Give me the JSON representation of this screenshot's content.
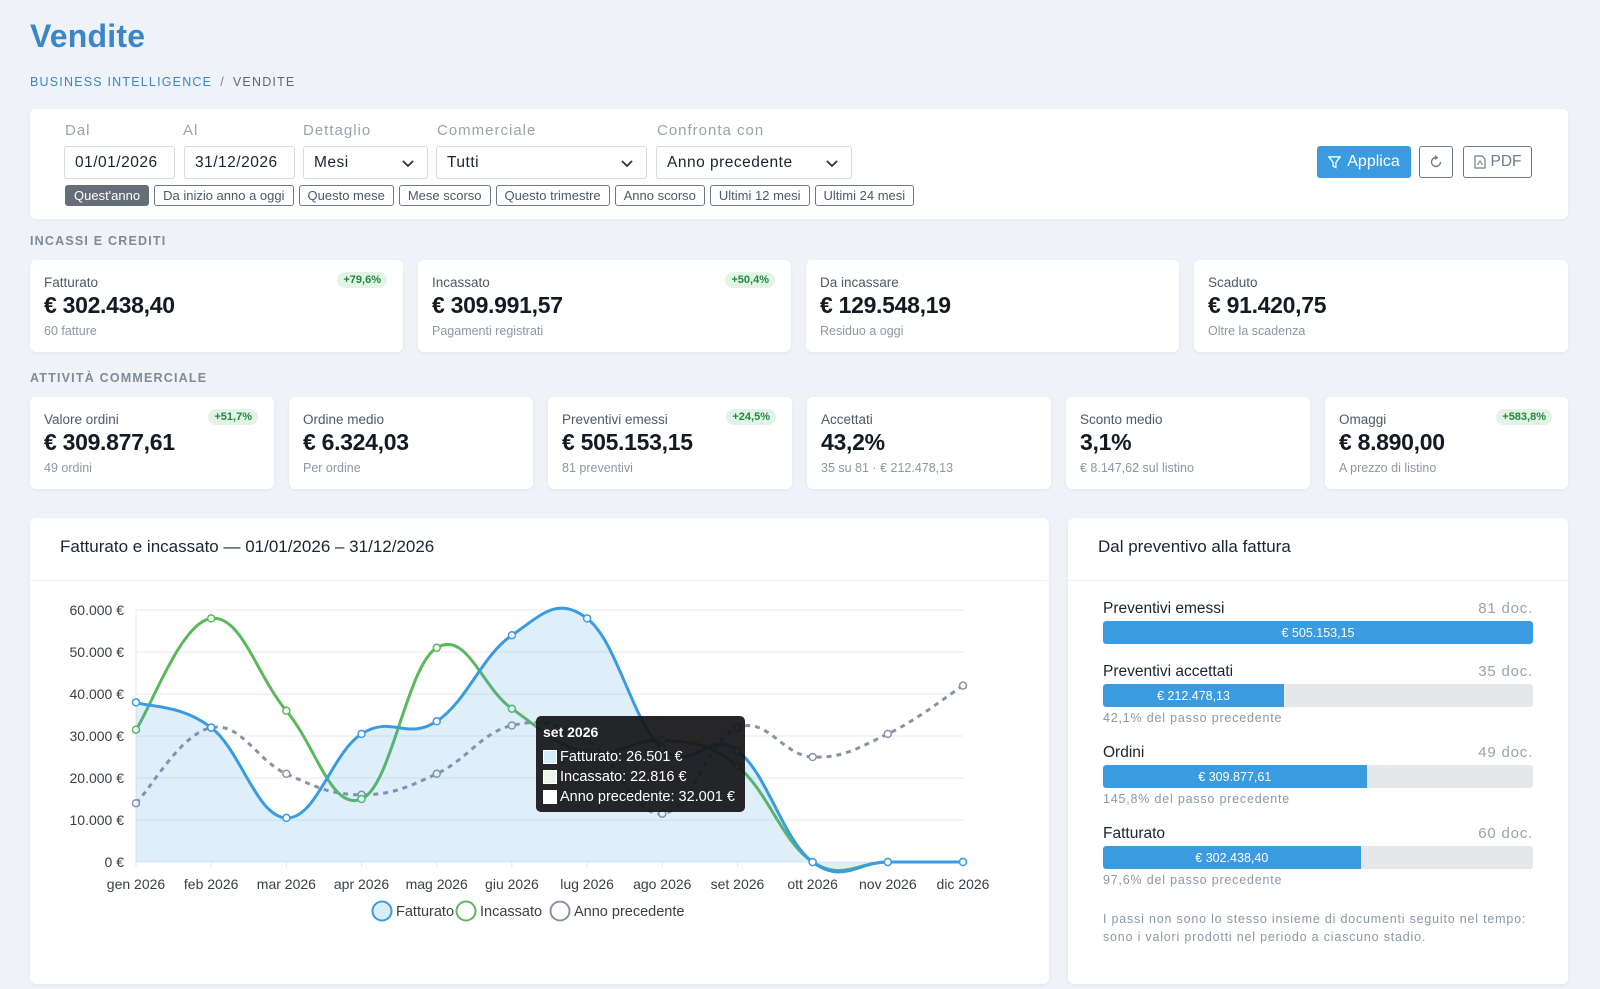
{
  "header": {
    "title": "Vendite",
    "breadcrumb": {
      "link": "BUSINESS INTELLIGENCE",
      "separator": "/",
      "current": "VENDITE"
    }
  },
  "filters": {
    "from": {
      "label": "Dal",
      "value": "01/01/2026"
    },
    "to": {
      "label": "Al",
      "value": "31/12/2026"
    },
    "detail": {
      "label": "Dettaglio",
      "value": "Mesi"
    },
    "salesperson": {
      "label": "Commerciale",
      "value": "Tutti"
    },
    "compare": {
      "label": "Confronta con",
      "value": "Anno precedente"
    },
    "presets": [
      "Quest'anno",
      "Da inizio anno a oggi",
      "Questo mese",
      "Mese scorso",
      "Questo trimestre",
      "Anno scorso",
      "Ultimi 12 mesi",
      "Ultimi 24 mesi"
    ],
    "active_preset": "Quest'anno",
    "apply_label": "Applica",
    "pdf_label": "PDF"
  },
  "sections": {
    "incassi": "INCASSI E CREDITI",
    "attivita": "ATTIVITÀ COMMERCIALE"
  },
  "kpis_row1": [
    {
      "label": "Fatturato",
      "value": "€ 302.438,40",
      "sub": "60 fatture",
      "badge": "+79,6%"
    },
    {
      "label": "Incassato",
      "value": "€ 309.991,57",
      "sub": "Pagamenti registrati",
      "badge": "+50,4%"
    },
    {
      "label": "Da incassare",
      "value": "€ 129.548,19",
      "sub": "Residuo a oggi",
      "badge": ""
    },
    {
      "label": "Scaduto",
      "value": "€ 91.420,75",
      "sub": "Oltre la scadenza",
      "badge": ""
    }
  ],
  "kpis_row2": [
    {
      "label": "Valore ordini",
      "value": "€ 309.877,61",
      "sub": "49 ordini",
      "badge": "+51,7%"
    },
    {
      "label": "Ordine medio",
      "value": "€ 6.324,03",
      "sub": "Per ordine",
      "badge": ""
    },
    {
      "label": "Preventivi emessi",
      "value": "€ 505.153,15",
      "sub": "81 preventivi",
      "badge": "+24,5%"
    },
    {
      "label": "Accettati",
      "value": "43,2%",
      "sub": "35 su 81 · € 212.478,13",
      "badge": ""
    },
    {
      "label": "Sconto medio",
      "value": "3,1%",
      "sub": "€ 8.147,62 sul listino",
      "badge": ""
    },
    {
      "label": "Omaggi",
      "value": "€ 8.890,00",
      "sub": "A prezzo di listino",
      "badge": "+583,8%"
    }
  ],
  "chart_panel": {
    "title": "Fatturato e incassato — 01/01/2026 – 31/12/2026"
  },
  "chart_data": {
    "type": "line",
    "categories": [
      "gen 2026",
      "feb 2026",
      "mar 2026",
      "apr 2026",
      "mag 2026",
      "giu 2026",
      "lug 2026",
      "ago 2026",
      "set 2026",
      "ott 2026",
      "nov 2026",
      "dic 2026"
    ],
    "series": [
      {
        "name": "Fatturato",
        "values": [
          38000,
          32000,
          10500,
          30500,
          33500,
          54000,
          58000,
          27000,
          26501,
          0,
          0,
          0
        ],
        "color": "#3a9be0",
        "fill": true
      },
      {
        "name": "Incassato",
        "values": [
          31500,
          58000,
          36000,
          15000,
          51000,
          36500,
          26000,
          29000,
          22816,
          0,
          0,
          0
        ],
        "color": "#5cb85c",
        "fill": false
      },
      {
        "name": "Anno precedente",
        "values": [
          14000,
          32000,
          21000,
          16000,
          21000,
          32500,
          29000,
          11500,
          32001,
          25000,
          30500,
          42000
        ],
        "color": "#8a93a6",
        "dashed": true
      }
    ],
    "y_ticks": [
      "0 €",
      "10.000 €",
      "20.000 €",
      "30.000 €",
      "40.000 €",
      "50.000 €",
      "60.000 €"
    ],
    "ylim": [
      0,
      60000
    ],
    "grid": true,
    "legend": "bottom",
    "tooltip": {
      "title": "set 2026",
      "rows": [
        "Fatturato: 26.501 €",
        "Incassato: 22.816 €",
        "Anno precedente: 32.001 €"
      ]
    }
  },
  "funnel": {
    "title": "Dal preventivo alla fattura",
    "steps": [
      {
        "name": "Preventivi emessi",
        "count": "81 doc.",
        "amount": "€ 505.153,15",
        "fraction": 1.0,
        "pct": ""
      },
      {
        "name": "Preventivi accettati",
        "count": "35 doc.",
        "amount": "€ 212.478,13",
        "fraction": 0.421,
        "pct": "42,1% del passo precedente"
      },
      {
        "name": "Ordini",
        "count": "49 doc.",
        "amount": "€ 309.877,61",
        "fraction": 0.613,
        "pct": "145,8% del passo precedente"
      },
      {
        "name": "Fatturato",
        "count": "60 doc.",
        "amount": "€ 302.438,40",
        "fraction": 0.599,
        "pct": "97,6% del passo precedente"
      }
    ],
    "note": "I passi non sono lo stesso insieme di documenti seguito nel tempo: sono i valori prodotti nel periodo a ciascuno stadio."
  },
  "colors": {
    "accent": "#3a86c8",
    "button": "#3a9be0",
    "badge_text": "#1f8a3d",
    "badge_bg": "#e3f4e6"
  }
}
